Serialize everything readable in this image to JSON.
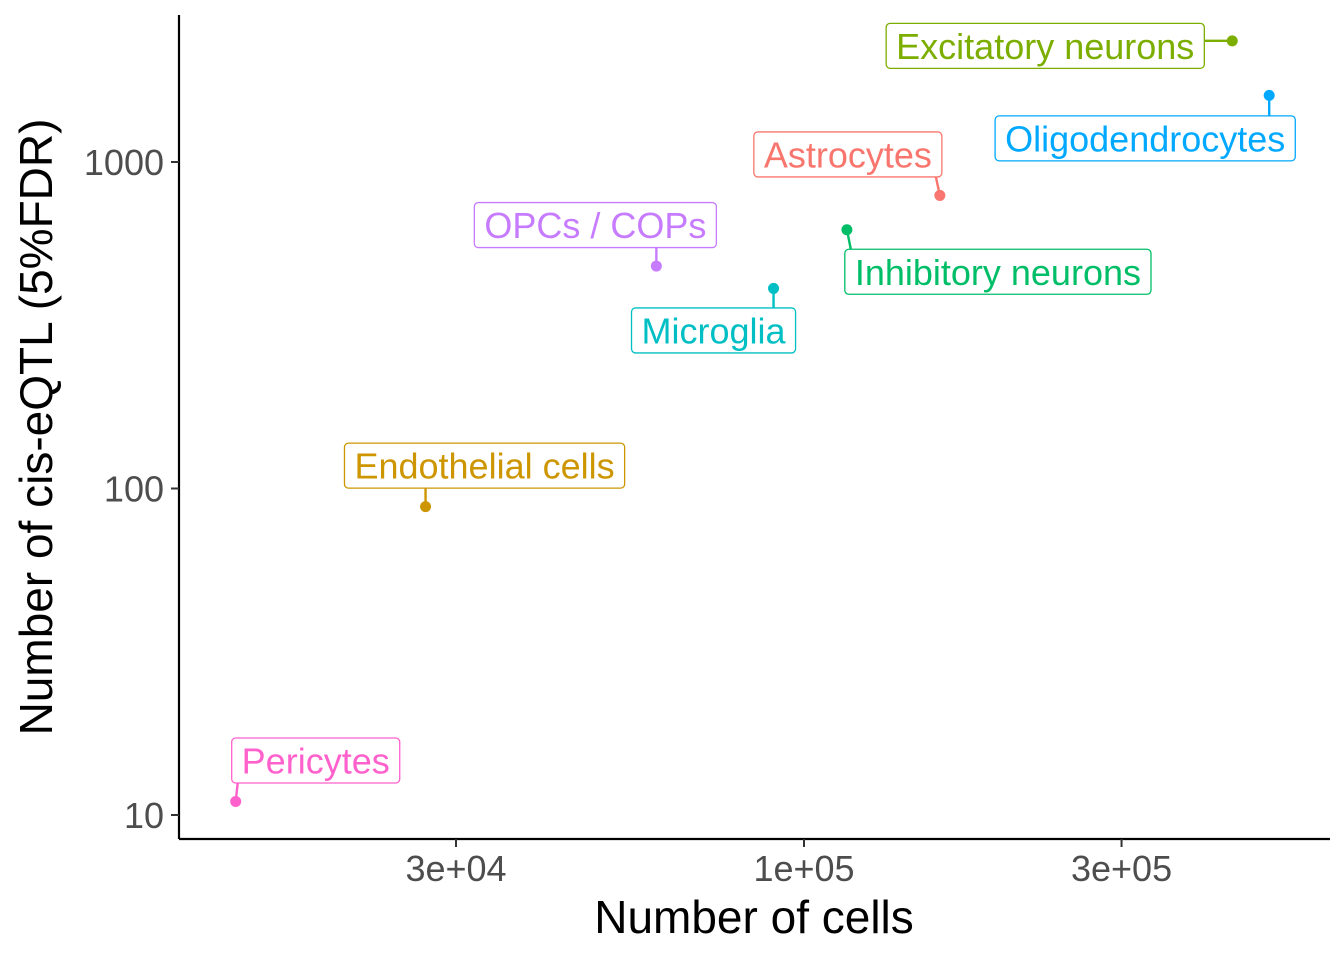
{
  "chart_data": {
    "type": "scatter",
    "title": "",
    "xlabel": "Number of cells",
    "ylabel": "Number of cis-eQTL (5%FDR)",
    "x_scale": "log10",
    "y_scale": "log10",
    "xlim": [
      9000,
      580000
    ],
    "ylim": [
      9,
      3000
    ],
    "x_ticks": [
      {
        "value": 30000,
        "label": "3e+04"
      },
      {
        "value": 100000,
        "label": "1e+05"
      },
      {
        "value": 300000,
        "label": "3e+05"
      }
    ],
    "y_ticks": [
      {
        "value": 10,
        "label": "10"
      },
      {
        "value": 100,
        "label": "100"
      },
      {
        "value": 1000,
        "label": "1000"
      }
    ],
    "grid": false,
    "legend": "none",
    "points": [
      {
        "label": "Excitatory neurons",
        "x": 440000,
        "y": 2350,
        "color": "#7CAE00"
      },
      {
        "label": "Oligodendrocytes",
        "x": 500000,
        "y": 1600,
        "color": "#00A9FF"
      },
      {
        "label": "Astrocytes",
        "x": 160000,
        "y": 790,
        "color": "#F8766D"
      },
      {
        "label": "Inhibitory neurons",
        "x": 116000,
        "y": 620,
        "color": "#00BE67"
      },
      {
        "label": "OPCs / COPs",
        "x": 60000,
        "y": 480,
        "color": "#C77CFF"
      },
      {
        "label": "Microglia",
        "x": 90000,
        "y": 410,
        "color": "#00BFC4"
      },
      {
        "label": "Endothelial cells",
        "x": 27000,
        "y": 88,
        "color": "#CD9600"
      },
      {
        "label": "Pericytes",
        "x": 14000,
        "y": 11,
        "color": "#FF61CC"
      }
    ]
  }
}
